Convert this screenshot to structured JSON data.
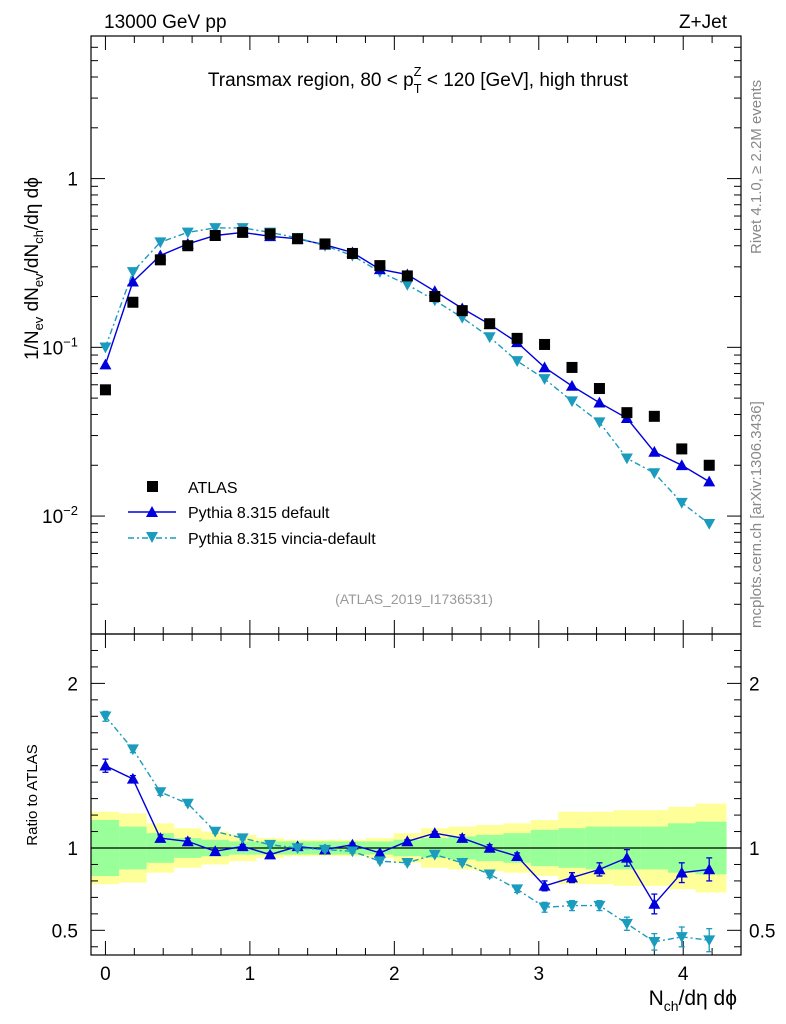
{
  "header": {
    "left": "13000 GeV pp",
    "right": "Z+Jet"
  },
  "side_text": {
    "rivet": "Rivet 4.1.0, ≥ 2.2M events",
    "mcplots": "mcplots.cern.ch [arXiv:1306.3436]"
  },
  "colors": {
    "data": "#000000",
    "pythia_default": "#0000dd",
    "pythia_vincia": "#1b9bbd",
    "band_inner": "#99ff99",
    "band_outer": "#ffff99"
  },
  "chart_data": [
    {
      "type": "scatter",
      "panel": "main",
      "title": "Transmax region, 80 < p_T^Z < 120 [GeV], high thrust",
      "title_parts": {
        "pre": "Transmax region, 80 < p",
        "sub": "T",
        "sup": "Z",
        "post": " < 120 [GeV], high thrust"
      },
      "ylabel_parts": [
        "1/N",
        "ev",
        " dN",
        "ev",
        "/dN",
        "ch",
        "/dη dϕ"
      ],
      "yscale": "log",
      "ylim": [
        0.002,
        7
      ],
      "xlim": [
        -0.1,
        4.4
      ],
      "y_ticks": [
        {
          "value": 0.01,
          "base": "10",
          "exp": "−2"
        },
        {
          "value": 0.1,
          "base": "10",
          "exp": "−1"
        },
        {
          "value": 1,
          "base": "1",
          "exp": ""
        }
      ],
      "analysis_id": "(ATLAS_2019_I1736531)",
      "legend": [
        {
          "key": "atlas",
          "label": "ATLAS"
        },
        {
          "key": "pythia_default",
          "label": "Pythia 8.315 default"
        },
        {
          "key": "pythia_vincia",
          "label": "Pythia 8.315 vincia-default"
        }
      ],
      "x": [
        0.0,
        0.19,
        0.38,
        0.57,
        0.76,
        0.95,
        1.14,
        1.33,
        1.52,
        1.71,
        1.9,
        2.09,
        2.28,
        2.47,
        2.66,
        2.85,
        3.04,
        3.23,
        3.42,
        3.61,
        3.8,
        3.99,
        4.18
      ],
      "series": [
        {
          "name": "ATLAS",
          "key": "atlas",
          "values": [
            0.056,
            0.185,
            0.33,
            0.4,
            0.46,
            0.48,
            0.47,
            0.44,
            0.41,
            0.36,
            0.305,
            0.265,
            0.2,
            0.165,
            0.138,
            0.113,
            0.104,
            0.076,
            0.057,
            0.041,
            0.039,
            0.025,
            0.02
          ]
        },
        {
          "name": "Pythia 8.315 default",
          "key": "pythia_default",
          "values": [
            0.079,
            0.245,
            0.35,
            0.41,
            0.46,
            0.48,
            0.455,
            0.44,
            0.405,
            0.365,
            0.29,
            0.27,
            0.215,
            0.17,
            0.137,
            0.107,
            0.076,
            0.059,
            0.047,
            0.038,
            0.024,
            0.02,
            0.016
          ]
        },
        {
          "name": "Pythia 8.315 vincia-default",
          "key": "pythia_vincia",
          "values": [
            0.1,
            0.28,
            0.42,
            0.48,
            0.51,
            0.51,
            0.48,
            0.445,
            0.4,
            0.35,
            0.28,
            0.235,
            0.19,
            0.15,
            0.115,
            0.083,
            0.065,
            0.048,
            0.036,
            0.022,
            0.018,
            0.012,
            0.009
          ]
        }
      ]
    },
    {
      "type": "line",
      "panel": "ratio",
      "ylabel": "Ratio to ATLAS",
      "xlabel_parts": [
        "N",
        "ch",
        "/dη dϕ"
      ],
      "ylim": [
        0.35,
        2.3
      ],
      "xlim": [
        -0.1,
        4.4
      ],
      "x_ticks": [
        "0",
        "1",
        "2",
        "3",
        "4"
      ],
      "y_ticks": [
        "0.5",
        "1",
        "2"
      ],
      "x": [
        0.0,
        0.19,
        0.38,
        0.57,
        0.76,
        0.95,
        1.14,
        1.33,
        1.52,
        1.71,
        1.9,
        2.09,
        2.28,
        2.47,
        2.66,
        2.85,
        3.04,
        3.23,
        3.42,
        3.61,
        3.8,
        3.99,
        4.18
      ],
      "series": [
        {
          "name": "Pythia 8.315 default",
          "key": "pythia_default",
          "values": [
            1.5,
            1.42,
            1.06,
            1.04,
            0.98,
            1.01,
            0.96,
            1.01,
            0.99,
            1.02,
            0.97,
            1.04,
            1.09,
            1.06,
            1.0,
            0.95,
            0.77,
            0.82,
            0.87,
            0.94,
            0.66,
            0.85,
            0.87
          ],
          "errors": [
            0.04,
            0.02,
            0.02,
            0.02,
            0.01,
            0.01,
            0.01,
            0.01,
            0.01,
            0.01,
            0.01,
            0.01,
            0.01,
            0.02,
            0.02,
            0.02,
            0.03,
            0.03,
            0.04,
            0.05,
            0.06,
            0.06,
            0.07
          ]
        },
        {
          "name": "Pythia 8.315 vincia-default",
          "key": "pythia_vincia",
          "values": [
            1.8,
            1.6,
            1.34,
            1.27,
            1.1,
            1.06,
            1.02,
            1.0,
            0.99,
            0.98,
            0.92,
            0.91,
            0.96,
            0.91,
            0.84,
            0.75,
            0.64,
            0.65,
            0.65,
            0.54,
            0.43,
            0.46,
            0.44
          ],
          "errors": [
            0.03,
            0.02,
            0.02,
            0.01,
            0.01,
            0.01,
            0.01,
            0.01,
            0.01,
            0.01,
            0.01,
            0.01,
            0.01,
            0.01,
            0.02,
            0.02,
            0.03,
            0.03,
            0.03,
            0.04,
            0.05,
            0.06,
            0.07
          ]
        }
      ],
      "band": {
        "edges": [
          -0.1,
          0.095,
          0.285,
          0.475,
          0.665,
          0.855,
          1.045,
          1.235,
          1.425,
          1.615,
          1.805,
          1.995,
          2.185,
          2.375,
          2.565,
          2.755,
          2.945,
          3.135,
          3.325,
          3.515,
          3.705,
          3.895,
          4.085,
          4.3
        ],
        "inner": [
          0.17,
          0.13,
          0.09,
          0.06,
          0.05,
          0.04,
          0.04,
          0.04,
          0.04,
          0.04,
          0.04,
          0.05,
          0.06,
          0.07,
          0.08,
          0.09,
          0.11,
          0.12,
          0.13,
          0.13,
          0.13,
          0.15,
          0.16
        ],
        "outer": [
          0.22,
          0.21,
          0.15,
          0.12,
          0.1,
          0.08,
          0.06,
          0.05,
          0.05,
          0.05,
          0.06,
          0.09,
          0.12,
          0.13,
          0.14,
          0.15,
          0.17,
          0.22,
          0.22,
          0.23,
          0.23,
          0.25,
          0.27
        ]
      }
    }
  ]
}
